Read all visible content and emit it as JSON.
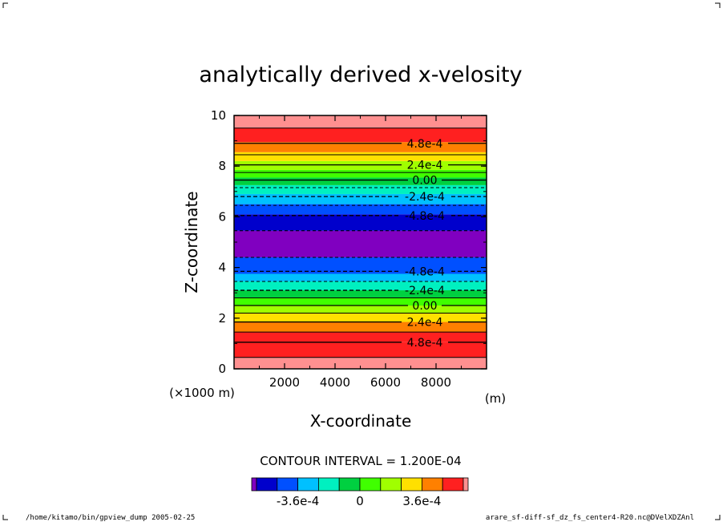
{
  "chart_data": {
    "type": "heatmap",
    "title": "analytically derived x-velosity",
    "xlabel": "X-coordinate",
    "ylabel": "Z-coordinate",
    "x_unit": "(m)",
    "y_unit": "(×1000 m)",
    "xlim": [
      0,
      10000
    ],
    "ylim": [
      0,
      10
    ],
    "x_ticks": [
      "2000",
      "4000",
      "6000",
      "8000"
    ],
    "y_ticks": [
      "0",
      "2",
      "4",
      "6",
      "8",
      "10"
    ],
    "contour_interval_label": "CONTOUR INTERVAL = 1.200E-04",
    "colorbar_labels": [
      "-3.6e-4",
      "0",
      "3.6e-4"
    ],
    "colors": [
      "#8000c0",
      "#0000cc",
      "#0050ff",
      "#00c0ff",
      "#00f0c0",
      "#00d040",
      "#40ff00",
      "#a0ff00",
      "#ffe000",
      "#ff8000",
      "#ff2020",
      "#ff9090"
    ],
    "bands": [
      {
        "z0": 0.0,
        "z1": 0.45,
        "color": "#ff9090"
      },
      {
        "z0": 0.45,
        "z1": 1.05,
        "color": "#ff2020"
      },
      {
        "z0": 1.05,
        "z1": 1.45,
        "color": "#ff2020"
      },
      {
        "z0": 1.45,
        "z1": 1.85,
        "color": "#ff8000"
      },
      {
        "z0": 1.85,
        "z1": 2.2,
        "color": "#ffe000"
      },
      {
        "z0": 2.2,
        "z1": 2.5,
        "color": "#a0ff00"
      },
      {
        "z0": 2.5,
        "z1": 2.8,
        "color": "#40ff00"
      },
      {
        "z0": 2.8,
        "z1": 3.1,
        "color": "#00d040"
      },
      {
        "z0": 3.1,
        "z1": 3.45,
        "color": "#00f0c0"
      },
      {
        "z0": 3.45,
        "z1": 3.75,
        "color": "#00c0ff"
      },
      {
        "z0": 3.75,
        "z1": 4.4,
        "color": "#0050ff"
      },
      {
        "z0": 4.4,
        "z1": 5.45,
        "color": "#8000c0"
      },
      {
        "z0": 5.45,
        "z1": 6.1,
        "color": "#0000cc"
      },
      {
        "z0": 6.1,
        "z1": 6.5,
        "color": "#0050ff"
      },
      {
        "z0": 6.5,
        "z1": 6.9,
        "color": "#00c0ff"
      },
      {
        "z0": 6.9,
        "z1": 7.25,
        "color": "#00f0c0"
      },
      {
        "z0": 7.25,
        "z1": 7.55,
        "color": "#00d040"
      },
      {
        "z0": 7.55,
        "z1": 7.85,
        "color": "#40ff00"
      },
      {
        "z0": 7.85,
        "z1": 8.2,
        "color": "#a0ff00"
      },
      {
        "z0": 8.2,
        "z1": 8.55,
        "color": "#ffe000"
      },
      {
        "z0": 8.55,
        "z1": 8.95,
        "color": "#ff8000"
      },
      {
        "z0": 8.95,
        "z1": 9.5,
        "color": "#ff2020"
      },
      {
        "z0": 9.5,
        "z1": 10.0,
        "color": "#ff9090"
      }
    ],
    "contours": [
      {
        "z": 1.05,
        "label": "4.8e-4",
        "dashed": false
      },
      {
        "z": 1.85,
        "label": "2.4e-4",
        "dashed": false
      },
      {
        "z": 2.5,
        "label": "0.00",
        "dashed": false
      },
      {
        "z": 3.1,
        "label": "-2.4e-4",
        "dashed": true
      },
      {
        "z": 3.85,
        "label": "-4.8e-4",
        "dashed": true
      },
      {
        "z": 6.05,
        "label": "-4.8e-4",
        "dashed": true
      },
      {
        "z": 6.8,
        "label": "-2.4e-4",
        "dashed": true
      },
      {
        "z": 7.45,
        "label": "0.00",
        "dashed": false
      },
      {
        "z": 8.05,
        "label": "2.4e-4",
        "dashed": false
      },
      {
        "z": 8.9,
        "label": "4.8e-4",
        "dashed": false
      }
    ],
    "extra_lines": [
      {
        "z": 0.45,
        "dashed": false
      },
      {
        "z": 1.45,
        "dashed": false
      },
      {
        "z": 2.2,
        "dashed": false
      },
      {
        "z": 2.8,
        "dashed": false
      },
      {
        "z": 3.45,
        "dashed": true
      },
      {
        "z": 4.4,
        "dashed": true
      },
      {
        "z": 5.45,
        "dashed": true
      },
      {
        "z": 6.45,
        "dashed": true
      },
      {
        "z": 7.15,
        "dashed": true
      },
      {
        "z": 7.75,
        "dashed": false
      },
      {
        "z": 8.45,
        "dashed": false
      },
      {
        "z": 9.5,
        "dashed": false
      }
    ]
  },
  "footer": {
    "left": "/home/kitamo/bin/gpview_dump  2005-02-25",
    "right": "arare_sf-diff-sf_dz_fs_center4-R20.nc@DVelXDZAnl"
  }
}
